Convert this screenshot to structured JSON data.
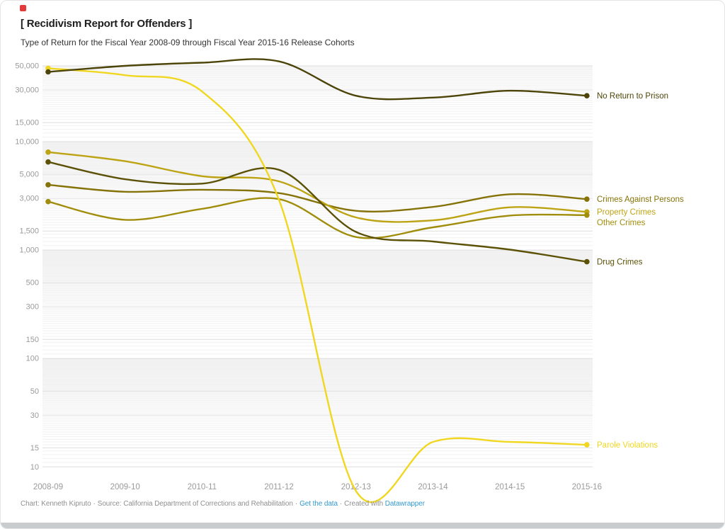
{
  "page": {
    "marker_color": "#e23b3b"
  },
  "header": {
    "title": "[ Recidivism Report for Offenders ]",
    "subtitle": "Type of Return for the Fiscal Year 2008-09 through Fiscal Year 2015-16 Release Cohorts"
  },
  "footer": {
    "chart_credit": "Chart: Kenneth Kipruto",
    "source": "Source: California Department of Corrections and Rehabilitation",
    "link_get_data": "Get the data",
    "created_with": "Created with",
    "link_datawrapper": "Datawrapper",
    "separator": "·",
    "link_color": "#3399cc",
    "text_color": "#8f8f8f"
  },
  "chart_data": {
    "type": "line",
    "x_categories": [
      "2008-09",
      "2009-10",
      "2010-11",
      "2011-12",
      "2012-13",
      "2013-14",
      "2014-15",
      "2015-16"
    ],
    "y_axis": {
      "scale": "log",
      "top_value": 50000,
      "bottom_value": 10,
      "ticks": [
        {
          "value": 50000,
          "label": "50,000"
        },
        {
          "value": 30000,
          "label": "30,000"
        },
        {
          "value": 15000,
          "label": "15,000"
        },
        {
          "value": 10000,
          "label": "10,000"
        },
        {
          "value": 5000,
          "label": "5,000"
        },
        {
          "value": 3000,
          "label": "3,000"
        },
        {
          "value": 1500,
          "label": "1,500"
        },
        {
          "value": 1000,
          "label": "1,000"
        },
        {
          "value": 500,
          "label": "500"
        },
        {
          "value": 300,
          "label": "300"
        },
        {
          "value": 150,
          "label": "150"
        },
        {
          "value": 100,
          "label": "100"
        },
        {
          "value": 50,
          "label": "50"
        },
        {
          "value": 30,
          "label": "30"
        },
        {
          "value": 15,
          "label": "15"
        },
        {
          "value": 10,
          "label": "10"
        }
      ]
    },
    "grid": "horizontal-log-minor-and-major",
    "legend_position": "labels-at-line-ends-right",
    "series": [
      {
        "name": "Crimes Against Persons",
        "color": "#857208",
        "values": [
          4000,
          3450,
          3600,
          3350,
          2300,
          2500,
          3270,
          2950
        ]
      },
      {
        "name": "Property Crimes",
        "color": "#bda414",
        "values": [
          8000,
          6600,
          4800,
          4300,
          2000,
          1880,
          2480,
          2250
        ]
      },
      {
        "name": "Other Crimes",
        "color": "#a18d0c",
        "values": [
          2800,
          1900,
          2400,
          2950,
          1320,
          1620,
          2080,
          2100
        ]
      },
      {
        "name": "Drug Crimes",
        "color": "#5c5207",
        "values": [
          6500,
          4500,
          4100,
          5500,
          1470,
          1200,
          1010,
          780
        ]
      },
      {
        "name": "Parole Violations",
        "color": "#f0d722",
        "values": [
          47500,
          41000,
          29000,
          2900,
          6,
          17,
          17,
          16
        ]
      },
      {
        "name": "No Return to Prison",
        "color": "#4c4409",
        "values": [
          44000,
          50000,
          53500,
          55000,
          26500,
          25500,
          29500,
          26500
        ]
      }
    ]
  }
}
